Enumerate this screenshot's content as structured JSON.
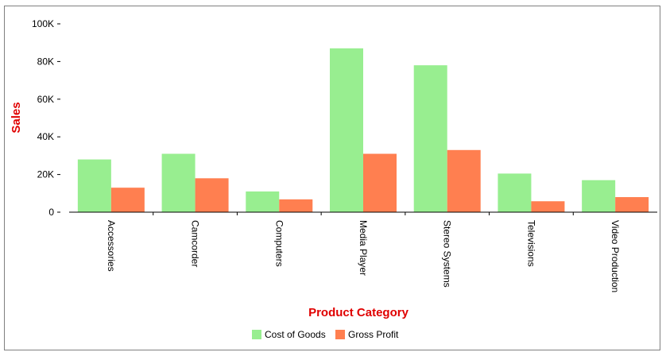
{
  "chart_data": {
    "type": "bar",
    "title": "",
    "xlabel": "Product Category",
    "ylabel": "Sales",
    "ylim": [
      0,
      100000
    ],
    "yticks": [
      0,
      20000,
      40000,
      60000,
      80000,
      100000
    ],
    "ytick_labels": [
      "0",
      "20K",
      "40K",
      "60K",
      "80K",
      "100K"
    ],
    "categories": [
      "Accessories",
      "Camcorder",
      "Computers",
      "Media Player",
      "Stereo Systems",
      "Televisions",
      "Video Production"
    ],
    "series": [
      {
        "name": "Cost of Goods",
        "color": "#98ee90",
        "values": [
          28000,
          31000,
          11000,
          87000,
          78000,
          20500,
          17000
        ]
      },
      {
        "name": "Gross Profit",
        "color": "#ff7f50",
        "values": [
          13000,
          18000,
          6800,
          31000,
          33000,
          5800,
          8000
        ]
      }
    ],
    "grid": false,
    "legend_position": "bottom",
    "axis_title_color": "#e00000"
  }
}
